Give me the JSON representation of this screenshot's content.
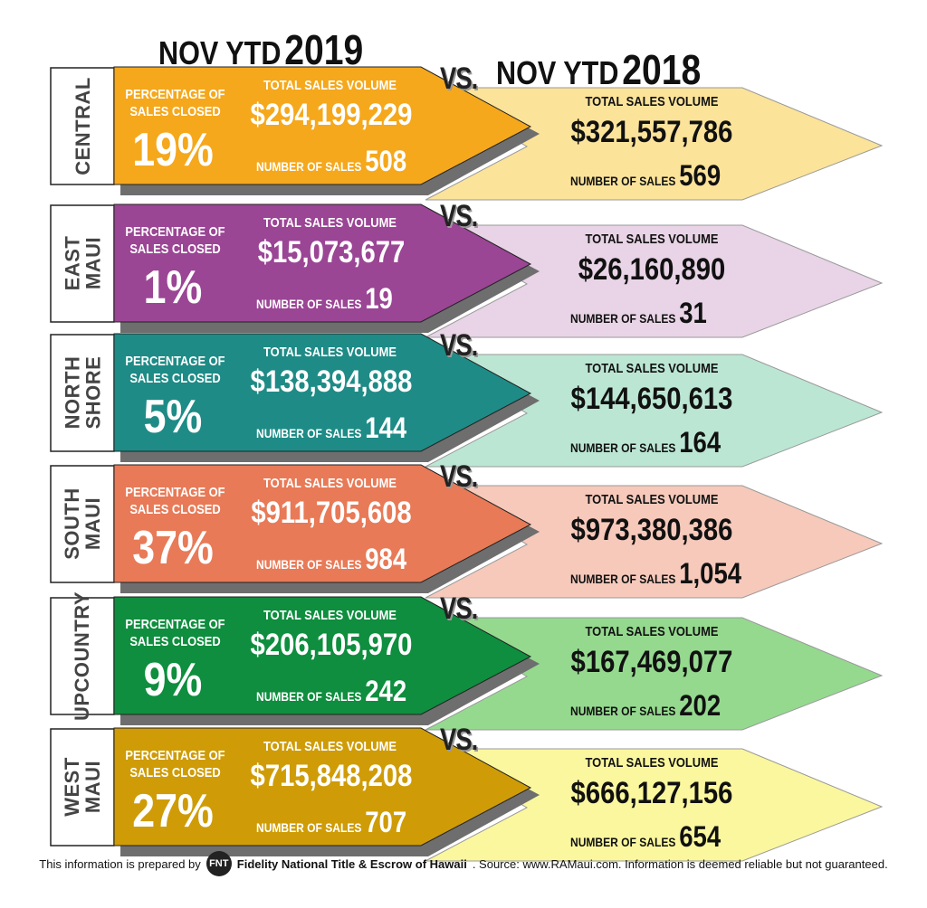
{
  "header": {
    "left_prefix": "NOV YTD",
    "left_year": "2019",
    "right_prefix": "NOV YTD",
    "right_year": "2018"
  },
  "labels": {
    "pct_line1": "PERCENTAGE OF",
    "pct_line2": "SALES CLOSED",
    "total_sales_volume": "TOTAL SALES VOLUME",
    "number_of_sales": "NUMBER OF SALES",
    "vs": "VS."
  },
  "regions": [
    {
      "name": "CENTRAL",
      "color_2019": "#f5a81c",
      "color_2018": "#fbe39a",
      "pct_2019": "19%",
      "volume_2019": "$294,199,229",
      "sales_2019": "508",
      "volume_2018": "$321,557,786",
      "sales_2018": "569"
    },
    {
      "name": "EAST\nMAUI",
      "color_2019": "#9b4595",
      "color_2018": "#e8d4e6",
      "pct_2019": "1%",
      "volume_2019": "$15,073,677",
      "sales_2019": "19",
      "volume_2018": "$26,160,890",
      "sales_2018": "31"
    },
    {
      "name": "NORTH\nSHORE",
      "color_2019": "#1e8b86",
      "color_2018": "#bce6d4",
      "pct_2019": "5%",
      "volume_2019": "$138,394,888",
      "sales_2019": "144",
      "volume_2018": "$144,650,613",
      "sales_2018": "164"
    },
    {
      "name": "SOUTH\nMAUI",
      "color_2019": "#e87a57",
      "color_2018": "#f6c9bb",
      "pct_2019": "37%",
      "volume_2019": "$911,705,608",
      "sales_2019": "984",
      "volume_2018": "$973,380,386",
      "sales_2018": "1,054"
    },
    {
      "name": "UPCOUNTRY",
      "color_2019": "#0e8e3e",
      "color_2018": "#95d98f",
      "pct_2019": "9%",
      "volume_2019": "$206,105,970",
      "sales_2019": "242",
      "volume_2018": "$167,469,077",
      "sales_2018": "202"
    },
    {
      "name": "WEST\nMAUI",
      "color_2019": "#cf9c07",
      "color_2018": "#fbf79e",
      "pct_2019": "27%",
      "volume_2019": "$715,848,208",
      "sales_2019": "707",
      "volume_2018": "$666,127,156",
      "sales_2018": "654"
    }
  ],
  "footer": {
    "prefix": "This information is prepared by",
    "logo_text": "FNT",
    "company": "Fidelity National Title & Escrow of Hawaii",
    "source": ". Source:  www.RAMaui.com.  Information is deemed reliable but not guaranteed."
  }
}
